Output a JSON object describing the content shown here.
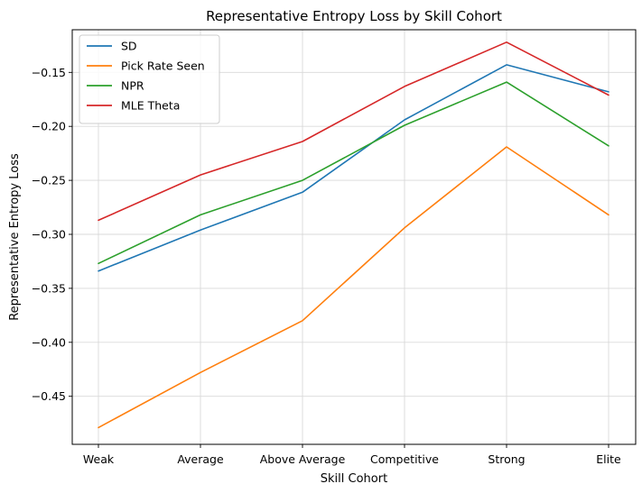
{
  "chart_data": {
    "type": "line",
    "title": "Representative Entropy Loss by Skill Cohort",
    "xlabel": "Skill Cohort",
    "ylabel": "Representative Entropy Loss",
    "categories": [
      "Weak",
      "Average",
      "Above Average",
      "Competitive",
      "Strong",
      "Elite"
    ],
    "ylim": [
      -0.4945,
      -0.1105
    ],
    "yticks": [
      -0.45,
      -0.4,
      -0.35,
      -0.3,
      -0.25,
      -0.2,
      -0.15
    ],
    "ytick_labels": [
      "−0.45",
      "−0.40",
      "−0.35",
      "−0.30",
      "−0.25",
      "−0.20",
      "−0.15"
    ],
    "grid": true,
    "legend_position": "top-left",
    "series": [
      {
        "name": "SD",
        "color": "#1f77b4",
        "values": [
          -0.334,
          -0.296,
          -0.261,
          -0.194,
          -0.143,
          -0.168
        ]
      },
      {
        "name": "Pick Rate Seen",
        "color": "#ff7f0e",
        "values": [
          -0.479,
          -0.428,
          -0.38,
          -0.294,
          -0.219,
          -0.282
        ]
      },
      {
        "name": "NPR",
        "color": "#2ca02c",
        "values": [
          -0.327,
          -0.282,
          -0.25,
          -0.199,
          -0.159,
          -0.218
        ]
      },
      {
        "name": "MLE Theta",
        "color": "#d62728",
        "values": [
          -0.287,
          -0.245,
          -0.214,
          -0.163,
          -0.122,
          -0.171
        ]
      }
    ]
  }
}
